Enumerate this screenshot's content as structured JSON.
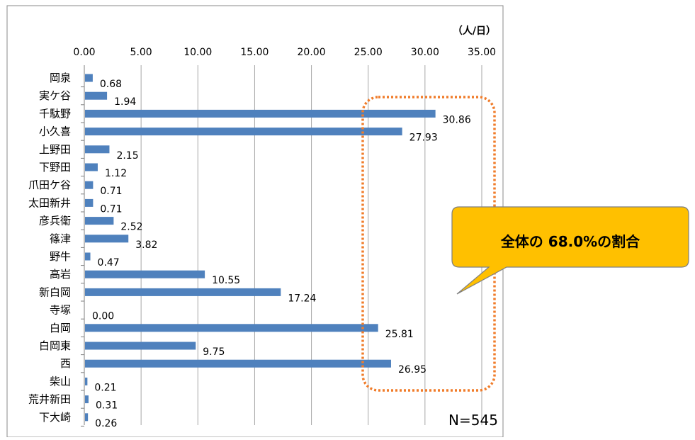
{
  "chart_data": {
    "type": "bar",
    "orientation": "horizontal",
    "unit_label": "（人/日）",
    "xlim": [
      0,
      35
    ],
    "x_ticks": [
      "0.00",
      "5.00",
      "10.00",
      "15.00",
      "20.00",
      "25.00",
      "30.00",
      "35.00"
    ],
    "grid": true,
    "categories": [
      "岡泉",
      "実ケ谷",
      "千駄野",
      "小久喜",
      "上野田",
      "下野田",
      "爪田ケ谷",
      "太田新井",
      "彦兵衛",
      "篠津",
      "野牛",
      "高岩",
      "新白岡",
      "寺塚",
      "白岡",
      "白岡東",
      "西",
      "柴山",
      "荒井新田",
      "下大崎"
    ],
    "values": [
      0.68,
      1.94,
      30.86,
      27.93,
      2.15,
      1.12,
      0.71,
      0.71,
      2.52,
      3.82,
      0.47,
      10.55,
      17.24,
      0.0,
      25.81,
      9.75,
      26.95,
      0.21,
      0.31,
      0.26
    ],
    "data_labels": [
      "0.68",
      "1.94",
      "30.86",
      "27.93",
      "2.15",
      "1.12",
      "0.71",
      "0.71",
      "2.52",
      "3.82",
      "0.47",
      "10.55",
      "17.24",
      "0.00",
      "25.81",
      "9.75",
      "26.95",
      "0.21",
      "0.31",
      "0.26"
    ],
    "bar_color": "#4F81BD",
    "annotations": {
      "sample_size": "N=545",
      "callout": "全体の 68.0%の割合",
      "callout_fill": "#FFC000",
      "highlight_border": "#F07C2A"
    }
  }
}
